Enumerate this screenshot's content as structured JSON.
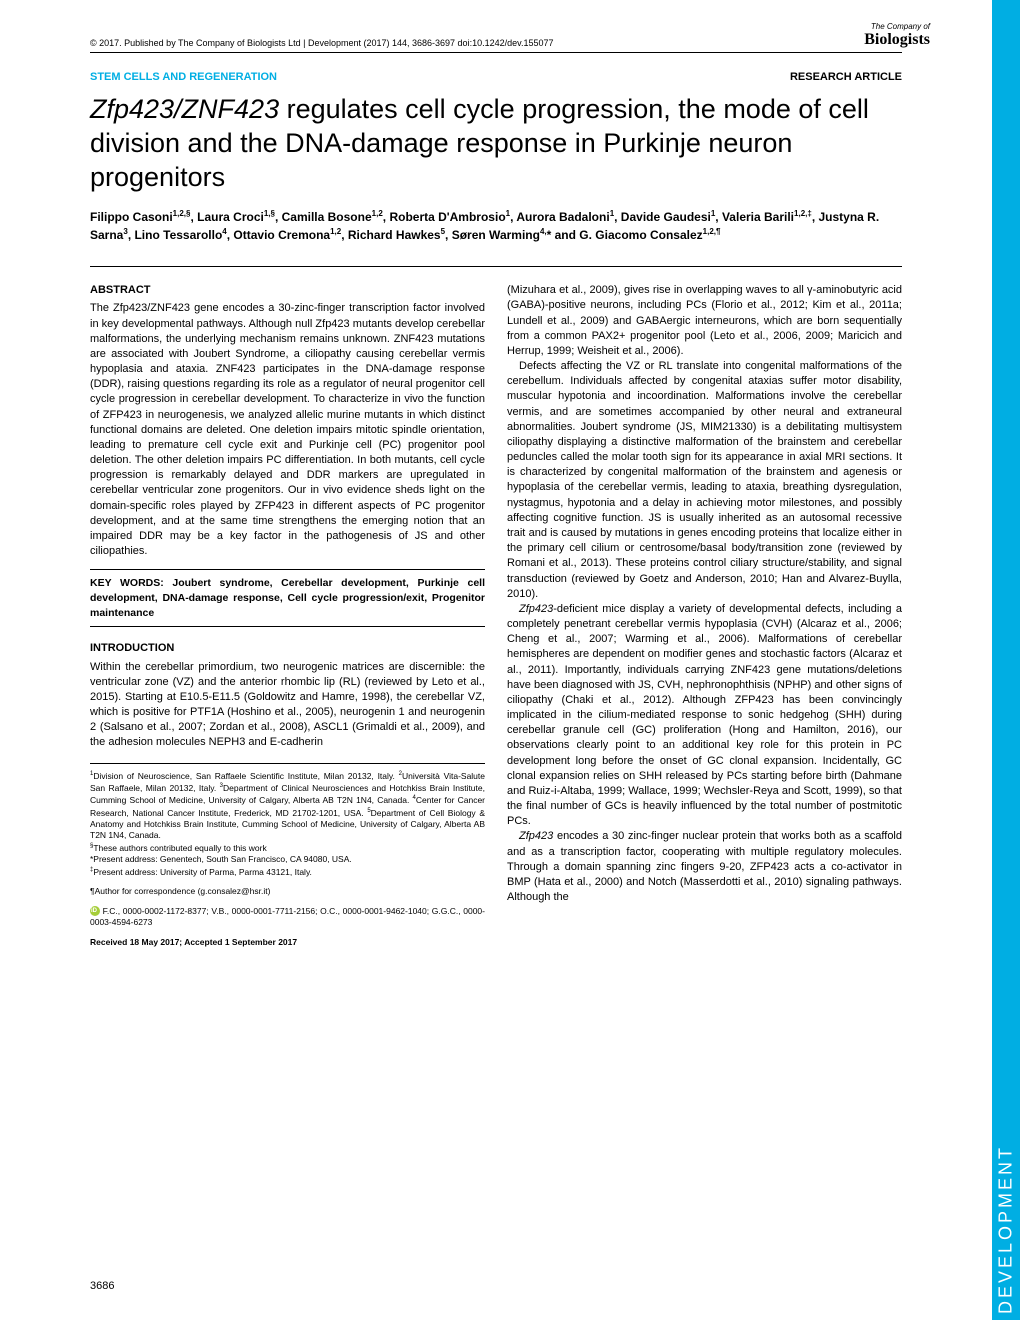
{
  "meta": {
    "copyright": "© 2017. Published by The Company of Biologists Ltd",
    "journal": "Development (2017) 144, 3686-3697 doi:10.1242/dev.155077",
    "logo_line1": "The Company of",
    "logo_line2": "Biologists"
  },
  "header": {
    "category": "STEM CELLS AND REGENERATION",
    "type": "RESEARCH ARTICLE"
  },
  "title_parts": {
    "italic": "Zfp423/ZNF423",
    "rest": " regulates cell cycle progression, the mode of cell division and the DNA-damage response in Purkinje neuron progenitors"
  },
  "authors_html": "Filippo Casoni<sup>1,2,§</sup>, Laura Croci<sup>1,§</sup>, Camilla Bosone<sup>1,2</sup>, Roberta D'Ambrosio<sup>1</sup>, Aurora Badaloni<sup>1</sup>, Davide Gaudesi<sup>1</sup>, Valeria Barili<sup>1,2,‡</sup>, Justyna R. Sarna<sup>3</sup>, Lino Tessarollo<sup>4</sup>, Ottavio Cremona<sup>1,2</sup>, Richard Hawkes<sup>5</sup>, Søren Warming<sup>4,</sup>* and G. Giacomo Consalez<sup>1,2,¶</sup>",
  "abstract": {
    "heading": "ABSTRACT",
    "text": "The Zfp423/ZNF423 gene encodes a 30-zinc-finger transcription factor involved in key developmental pathways. Although null Zfp423 mutants develop cerebellar malformations, the underlying mechanism remains unknown. ZNF423 mutations are associated with Joubert Syndrome, a ciliopathy causing cerebellar vermis hypoplasia and ataxia. ZNF423 participates in the DNA-damage response (DDR), raising questions regarding its role as a regulator of neural progenitor cell cycle progression in cerebellar development. To characterize in vivo the function of ZFP423 in neurogenesis, we analyzed allelic murine mutants in which distinct functional domains are deleted. One deletion impairs mitotic spindle orientation, leading to premature cell cycle exit and Purkinje cell (PC) progenitor pool deletion. The other deletion impairs PC differentiation. In both mutants, cell cycle progression is remarkably delayed and DDR markers are upregulated in cerebellar ventricular zone progenitors. Our in vivo evidence sheds light on the domain-specific roles played by ZFP423 in different aspects of PC progenitor development, and at the same time strengthens the emerging notion that an impaired DDR may be a key factor in the pathogenesis of JS and other ciliopathies."
  },
  "keywords": "KEY WORDS: Joubert syndrome, Cerebellar development, Purkinje cell development, DNA-damage response, Cell cycle progression/exit, Progenitor maintenance",
  "intro": {
    "heading": "INTRODUCTION",
    "p1": "Within the cerebellar primordium, two neurogenic matrices are discernible: the ventricular zone (VZ) and the anterior rhombic lip (RL) (reviewed by Leto et al., 2015). Starting at E10.5-E11.5 (Goldowitz and Hamre, 1998), the cerebellar VZ, which is positive for PTF1A (Hoshino et al., 2005), neurogenin 1 and neurogenin 2 (Salsano et al., 2007; Zordan et al., 2008), ASCL1 (Grimaldi et al., 2009), and the adhesion molecules NEPH3 and E-cadherin"
  },
  "col2": {
    "p1": "(Mizuhara et al., 2009), gives rise in overlapping waves to all γ-aminobutyric acid (GABA)-positive neurons, including PCs (Florio et al., 2012; Kim et al., 2011a; Lundell et al., 2009) and GABAergic interneurons, which are born sequentially from a common PAX2+ progenitor pool (Leto et al., 2006, 2009; Maricich and Herrup, 1999; Weisheit et al., 2006).",
    "p2": "Defects affecting the VZ or RL translate into congenital malformations of the cerebellum. Individuals affected by congenital ataxias suffer motor disability, muscular hypotonia and incoordination. Malformations involve the cerebellar vermis, and are sometimes accompanied by other neural and extraneural abnormalities. Joubert syndrome (JS, MIM21330) is a debilitating multisystem ciliopathy displaying a distinctive malformation of the brainstem and cerebellar peduncles called the molar tooth sign for its appearance in axial MRI sections. It is characterized by congenital malformation of the brainstem and agenesis or hypoplasia of the cerebellar vermis, leading to ataxia, breathing dysregulation, nystagmus, hypotonia and a delay in achieving motor milestones, and possibly affecting cognitive function. JS is usually inherited as an autosomal recessive trait and is caused by mutations in genes encoding proteins that localize either in the primary cell cilium or centrosome/basal body/transition zone (reviewed by Romani et al., 2013). These proteins control ciliary structure/stability, and signal transduction (reviewed by Goetz and Anderson, 2010; Han and Alvarez-Buylla, 2010).",
    "p3": "Zfp423-deficient mice display a variety of developmental defects, including a completely penetrant cerebellar vermis hypoplasia (CVH) (Alcaraz et al., 2006; Cheng et al., 2007; Warming et al., 2006). Malformations of cerebellar hemispheres are dependent on modifier genes and stochastic factors (Alcaraz et al., 2011). Importantly, individuals carrying ZNF423 gene mutations/deletions have been diagnosed with JS, CVH, nephronophthisis (NPHP) and other signs of ciliopathy (Chaki et al., 2012). Although ZFP423 has been convincingly implicated in the cilium-mediated response to sonic hedgehog (SHH) during cerebellar granule cell (GC) proliferation (Hong and Hamilton, 2016), our observations clearly point to an additional key role for this protein in PC development long before the onset of GC clonal expansion. Incidentally, GC clonal expansion relies on SHH released by PCs starting before birth (Dahmane and Ruiz-i-Altaba, 1999; Wallace, 1999; Wechsler-Reya and Scott, 1999), so that the final number of GCs is heavily influenced by the total number of postmitotic PCs.",
    "p4": "Zfp423 encodes a 30 zinc-finger nuclear protein that works both as a scaffold and as a transcription factor, cooperating with multiple regulatory molecules. Through a domain spanning zinc fingers 9-20, ZFP423 acts a co-activator in BMP (Hata et al., 2000) and Notch (Masserdotti et al., 2010) signaling pathways. Although the"
  },
  "affiliations": "<sup>1</sup>Division of Neuroscience, San Raffaele Scientific Institute, Milan 20132, Italy. <sup>2</sup>Università Vita-Salute San Raffaele, Milan 20132, Italy. <sup>3</sup>Department of Clinical Neurosciences and Hotchkiss Brain Institute, Cumming School of Medicine, University of Calgary, Alberta AB T2N 1N4, Canada. <sup>4</sup>Center for Cancer Research, National Cancer Institute, Frederick, MD 21702-1201, USA. <sup>5</sup>Department of Cell Biology & Anatomy and Hotchkiss Brain Institute, Cumming School of Medicine, University of Calgary, Alberta AB T2N 1N4, Canada.<br><sup>§</sup>These authors contributed equally to this work<br>*Present address: Genentech, South San Francisco, CA 94080, USA.<br><sup>‡</sup>Present address: University of Parma, Parma 43121, Italy.",
  "corresp": "¶Author for correspondence (g.consalez@hsr.it)",
  "orcid": "F.C., 0000-0002-1172-8377; V.B., 0000-0001-7711-2156; O.C., 0000-0001-9462-1040; G.G.C., 0000-0003-4594-6273",
  "received": "Received 18 May 2017; Accepted 1 September 2017",
  "page_number": "3686",
  "side_tab": "DEVELOPMENT"
}
